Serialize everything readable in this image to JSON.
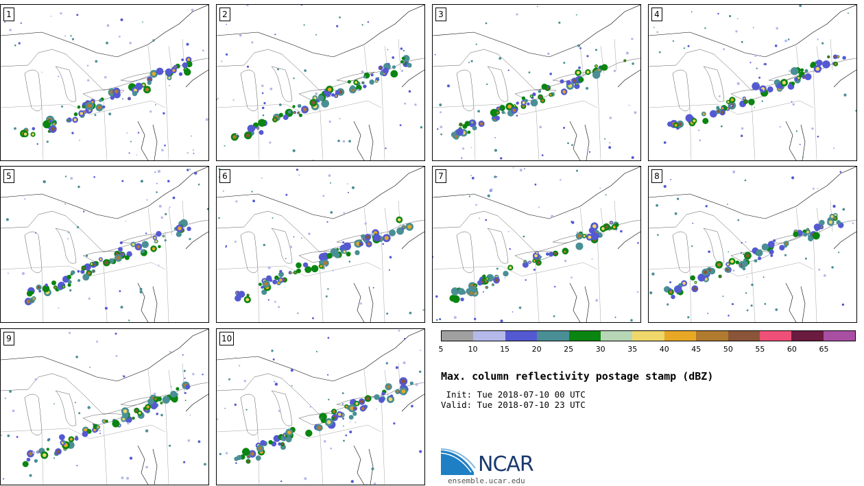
{
  "panels": [
    {
      "label": "1"
    },
    {
      "label": "2"
    },
    {
      "label": "3"
    },
    {
      "label": "4"
    },
    {
      "label": "5"
    },
    {
      "label": "6"
    },
    {
      "label": "7"
    },
    {
      "label": "8"
    },
    {
      "label": "9"
    },
    {
      "label": "10"
    }
  ],
  "colorbar": {
    "colors": [
      "#a0a0a0",
      "#b4b9ea",
      "#5459d2",
      "#4a8f95",
      "#0a8511",
      "#b7d6b5",
      "#efd76a",
      "#e8a826",
      "#b17b2f",
      "#8a5538",
      "#ef5078",
      "#6b1b40",
      "#a84fa3"
    ],
    "ticks": [
      "5",
      "10",
      "15",
      "20",
      "25",
      "30",
      "35",
      "40",
      "45",
      "50",
      "55",
      "60",
      "65"
    ]
  },
  "title": "Max. column reflectivity postage stamp (dBZ)",
  "init": " Init: Tue 2018-07-10 00 UTC",
  "valid": "Valid: Tue 2018-07-10 23 UTC",
  "logo": {
    "text": "NCAR",
    "url": "ensemble.ucar.edu"
  }
}
